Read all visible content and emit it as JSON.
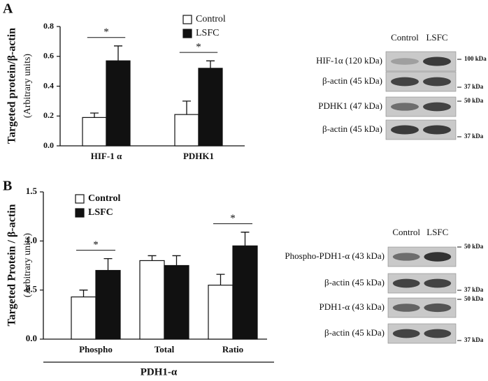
{
  "panels": [
    "A",
    "B"
  ],
  "chart_data": [
    {
      "type": "bar",
      "ylabel": "Targeted protein/β-actin",
      "ylabel_units": "(Arbitrary units)",
      "categories": [
        "HIF-1 α",
        "PDHK1"
      ],
      "series": [
        {
          "name": "Control",
          "color": "#ffffff",
          "values": [
            0.19,
            0.21
          ],
          "errors": [
            0.03,
            0.09
          ]
        },
        {
          "name": "LSFC",
          "color": "#111111",
          "values": [
            0.57,
            0.52
          ],
          "errors": [
            0.1,
            0.05
          ]
        }
      ],
      "significance": [
        "*",
        "*"
      ],
      "ylim": [
        0,
        0.8
      ],
      "yticks": [
        {
          "value": 0,
          "label": "0.0"
        },
        0.2,
        0.4,
        0.6,
        0.8
      ]
    },
    {
      "type": "bar",
      "ylabel": "Targeted Protein / β-actin",
      "ylabel_units": "(Arbitrary units)",
      "xlabel": "PDH1-α",
      "categories": [
        "Phospho",
        "Total",
        "Ratio"
      ],
      "series": [
        {
          "name": "Control",
          "color": "#ffffff",
          "values": [
            0.43,
            0.8,
            0.55
          ],
          "errors": [
            0.07,
            0.05,
            0.11
          ]
        },
        {
          "name": "LSFC",
          "color": "#111111",
          "values": [
            0.7,
            0.75,
            0.95
          ],
          "errors": [
            0.12,
            0.1,
            0.14
          ]
        }
      ],
      "significance": [
        "*",
        null,
        "*"
      ],
      "ylim": [
        0,
        1.5
      ],
      "yticks": [
        {
          "value": 0,
          "label": "0.0"
        },
        {
          "value": 0.5,
          "label": "0.5"
        },
        {
          "value": 1,
          "label": "1.0"
        },
        {
          "value": 1.5,
          "label": "1.5"
        }
      ]
    }
  ],
  "blots": [
    {
      "columns": [
        "Control",
        "LSFC"
      ],
      "rows": [
        {
          "label": "HIF-1α (120 kDa)",
          "marker": "100 kDa"
        },
        {
          "label": "β-actin (45 kDa)",
          "marker": "37 kDa"
        },
        {
          "label": "PDHK1 (47 kDa)",
          "marker": "50 kDa"
        },
        {
          "label": "β-actin (45 kDa)",
          "marker": "37 kDa"
        }
      ]
    },
    {
      "columns": [
        "Control",
        "LSFC"
      ],
      "rows": [
        {
          "label": "Phospho-PDH1-α (43 kDa)",
          "marker": "50 kDa"
        },
        {
          "label": "β-actin (45 kDa)",
          "marker": "37 kDa"
        },
        {
          "label": "PDH1-α (43 kDa)",
          "marker": "50 kDa"
        },
        {
          "label": "β-actin (45 kDa)",
          "marker": "37 kDa"
        }
      ]
    }
  ]
}
